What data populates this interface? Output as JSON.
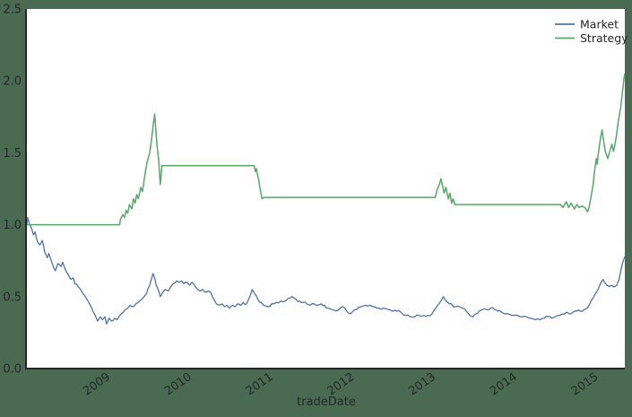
{
  "figure": {
    "background_color": "#4a6b52",
    "plot_background_color": "#ffffff",
    "spine_color": "#262626",
    "text_color": "#262626"
  },
  "chart_data": {
    "type": "line",
    "title": "",
    "xlabel": "tradeDate",
    "ylabel": "",
    "grid": false,
    "xlim": [
      2008.0,
      2015.35
    ],
    "ylim": [
      0.0,
      2.5
    ],
    "ytick_values": [
      0.0,
      0.5,
      1.0,
      1.5,
      2.0,
      2.5
    ],
    "ytick_labels": [
      "0.0",
      "0.5",
      "1.0",
      "1.5",
      "2.0",
      "2.5"
    ],
    "xtick_values": [
      2009,
      2010,
      2011,
      2012,
      2013,
      2014,
      2015
    ],
    "xtick_labels": [
      "2009",
      "2010",
      "2011",
      "2012",
      "2013",
      "2014",
      "2015"
    ],
    "legend": {
      "position": "upper-right",
      "entries": [
        {
          "label": "Market",
          "color": "#4c72b0"
        },
        {
          "label": "Strategy",
          "color": "#55a868"
        }
      ]
    },
    "series": [
      {
        "name": "Market",
        "color": "#4c72b0",
        "noise": 0.009,
        "points": [
          [
            2008.0,
            1.0
          ],
          [
            2008.01,
            1.05
          ],
          [
            2008.03,
            1.01
          ],
          [
            2008.06,
            0.97
          ],
          [
            2008.08,
            0.93
          ],
          [
            2008.1,
            0.95
          ],
          [
            2008.13,
            0.88
          ],
          [
            2008.16,
            0.86
          ],
          [
            2008.19,
            0.89
          ],
          [
            2008.22,
            0.81
          ],
          [
            2008.25,
            0.77
          ],
          [
            2008.27,
            0.8
          ],
          [
            2008.3,
            0.75
          ],
          [
            2008.33,
            0.7
          ],
          [
            2008.35,
            0.68
          ],
          [
            2008.38,
            0.73
          ],
          [
            2008.42,
            0.71
          ],
          [
            2008.44,
            0.74
          ],
          [
            2008.47,
            0.69
          ],
          [
            2008.51,
            0.65
          ],
          [
            2008.54,
            0.62
          ],
          [
            2008.57,
            0.63
          ],
          [
            2008.59,
            0.59
          ],
          [
            2008.63,
            0.57
          ],
          [
            2008.66,
            0.55
          ],
          [
            2008.69,
            0.52
          ],
          [
            2008.73,
            0.49
          ],
          [
            2008.76,
            0.46
          ],
          [
            2008.79,
            0.43
          ],
          [
            2008.81,
            0.4
          ],
          [
            2008.84,
            0.37
          ],
          [
            2008.87,
            0.33
          ],
          [
            2008.9,
            0.36
          ],
          [
            2008.93,
            0.34
          ],
          [
            2008.96,
            0.36
          ],
          [
            2008.98,
            0.31
          ],
          [
            2009.01,
            0.35
          ],
          [
            2009.04,
            0.33
          ],
          [
            2009.08,
            0.35
          ],
          [
            2009.11,
            0.34
          ],
          [
            2009.14,
            0.37
          ],
          [
            2009.18,
            0.39
          ],
          [
            2009.21,
            0.41
          ],
          [
            2009.24,
            0.42
          ],
          [
            2009.27,
            0.44
          ],
          [
            2009.31,
            0.43
          ],
          [
            2009.34,
            0.45
          ],
          [
            2009.37,
            0.46
          ],
          [
            2009.41,
            0.48
          ],
          [
            2009.44,
            0.5
          ],
          [
            2009.47,
            0.52
          ],
          [
            2009.51,
            0.58
          ],
          [
            2009.53,
            0.62
          ],
          [
            2009.55,
            0.66
          ],
          [
            2009.57,
            0.63
          ],
          [
            2009.59,
            0.58
          ],
          [
            2009.62,
            0.54
          ],
          [
            2009.64,
            0.5
          ],
          [
            2009.67,
            0.53
          ],
          [
            2009.7,
            0.55
          ],
          [
            2009.74,
            0.54
          ],
          [
            2009.77,
            0.57
          ],
          [
            2009.8,
            0.59
          ],
          [
            2009.84,
            0.61
          ],
          [
            2009.87,
            0.6
          ],
          [
            2009.9,
            0.61
          ],
          [
            2009.93,
            0.59
          ],
          [
            2009.97,
            0.6
          ],
          [
            2010.0,
            0.58
          ],
          [
            2010.03,
            0.6
          ],
          [
            2010.07,
            0.57
          ],
          [
            2010.1,
            0.55
          ],
          [
            2010.13,
            0.54
          ],
          [
            2010.16,
            0.55
          ],
          [
            2010.2,
            0.53
          ],
          [
            2010.23,
            0.54
          ],
          [
            2010.26,
            0.53
          ],
          [
            2010.3,
            0.48
          ],
          [
            2010.33,
            0.45
          ],
          [
            2010.36,
            0.44
          ],
          [
            2010.4,
            0.45
          ],
          [
            2010.43,
            0.43
          ],
          [
            2010.46,
            0.44
          ],
          [
            2010.49,
            0.42
          ],
          [
            2010.53,
            0.44
          ],
          [
            2010.56,
            0.43
          ],
          [
            2010.59,
            0.45
          ],
          [
            2010.63,
            0.44
          ],
          [
            2010.66,
            0.46
          ],
          [
            2010.7,
            0.45
          ],
          [
            2010.74,
            0.5
          ],
          [
            2010.77,
            0.55
          ],
          [
            2010.8,
            0.52
          ],
          [
            2010.84,
            0.48
          ],
          [
            2010.88,
            0.46
          ],
          [
            2010.91,
            0.44
          ],
          [
            2010.96,
            0.43
          ],
          [
            2011.01,
            0.45
          ],
          [
            2011.07,
            0.46
          ],
          [
            2011.12,
            0.47
          ],
          [
            2011.18,
            0.47
          ],
          [
            2011.23,
            0.49
          ],
          [
            2011.26,
            0.5
          ],
          [
            2011.31,
            0.48
          ],
          [
            2011.35,
            0.47
          ],
          [
            2011.4,
            0.46
          ],
          [
            2011.44,
            0.45
          ],
          [
            2011.48,
            0.44
          ],
          [
            2011.53,
            0.45
          ],
          [
            2011.57,
            0.44
          ],
          [
            2011.62,
            0.45
          ],
          [
            2011.66,
            0.44
          ],
          [
            2011.7,
            0.42
          ],
          [
            2011.75,
            0.41
          ],
          [
            2011.8,
            0.4
          ],
          [
            2011.85,
            0.42
          ],
          [
            2011.89,
            0.43
          ],
          [
            2011.92,
            0.41
          ],
          [
            2011.97,
            0.38
          ],
          [
            2012.01,
            0.4
          ],
          [
            2012.05,
            0.41
          ],
          [
            2012.11,
            0.43
          ],
          [
            2012.16,
            0.44
          ],
          [
            2012.22,
            0.44
          ],
          [
            2012.27,
            0.43
          ],
          [
            2012.33,
            0.42
          ],
          [
            2012.38,
            0.42
          ],
          [
            2012.44,
            0.41
          ],
          [
            2012.49,
            0.4
          ],
          [
            2012.55,
            0.4
          ],
          [
            2012.6,
            0.39
          ],
          [
            2012.66,
            0.37
          ],
          [
            2012.71,
            0.36
          ],
          [
            2012.77,
            0.36
          ],
          [
            2012.82,
            0.37
          ],
          [
            2012.88,
            0.37
          ],
          [
            2012.93,
            0.37
          ],
          [
            2012.98,
            0.38
          ],
          [
            2013.01,
            0.41
          ],
          [
            2013.05,
            0.44
          ],
          [
            2013.09,
            0.47
          ],
          [
            2013.12,
            0.5
          ],
          [
            2013.15,
            0.47
          ],
          [
            2013.19,
            0.45
          ],
          [
            2013.23,
            0.44
          ],
          [
            2013.27,
            0.43
          ],
          [
            2013.32,
            0.43
          ],
          [
            2013.35,
            0.42
          ],
          [
            2013.4,
            0.4
          ],
          [
            2013.43,
            0.38
          ],
          [
            2013.48,
            0.36
          ],
          [
            2013.52,
            0.38
          ],
          [
            2013.56,
            0.4
          ],
          [
            2013.6,
            0.41
          ],
          [
            2013.65,
            0.41
          ],
          [
            2013.7,
            0.42
          ],
          [
            2013.75,
            0.41
          ],
          [
            2013.79,
            0.4
          ],
          [
            2013.84,
            0.39
          ],
          [
            2013.88,
            0.38
          ],
          [
            2013.92,
            0.38
          ],
          [
            2013.98,
            0.37
          ],
          [
            2014.03,
            0.37
          ],
          [
            2014.09,
            0.36
          ],
          [
            2014.14,
            0.36
          ],
          [
            2014.2,
            0.35
          ],
          [
            2014.25,
            0.34
          ],
          [
            2014.31,
            0.34
          ],
          [
            2014.36,
            0.35
          ],
          [
            2014.41,
            0.36
          ],
          [
            2014.45,
            0.35
          ],
          [
            2014.49,
            0.36
          ],
          [
            2014.54,
            0.37
          ],
          [
            2014.58,
            0.38
          ],
          [
            2014.63,
            0.39
          ],
          [
            2014.67,
            0.38
          ],
          [
            2014.71,
            0.39
          ],
          [
            2014.76,
            0.4
          ],
          [
            2014.8,
            0.4
          ],
          [
            2014.85,
            0.41
          ],
          [
            2014.89,
            0.42
          ],
          [
            2014.92,
            0.45
          ],
          [
            2014.96,
            0.49
          ],
          [
            2014.99,
            0.52
          ],
          [
            2015.02,
            0.55
          ],
          [
            2015.05,
            0.59
          ],
          [
            2015.08,
            0.62
          ],
          [
            2015.1,
            0.6
          ],
          [
            2015.13,
            0.58
          ],
          [
            2015.16,
            0.57
          ],
          [
            2015.19,
            0.58
          ],
          [
            2015.23,
            0.57
          ],
          [
            2015.25,
            0.58
          ],
          [
            2015.28,
            0.62
          ],
          [
            2015.3,
            0.68
          ],
          [
            2015.32,
            0.73
          ],
          [
            2015.35,
            0.78
          ]
        ]
      },
      {
        "name": "Strategy",
        "color": "#55a868",
        "noise": 0,
        "points": [
          [
            2008.0,
            1.0
          ],
          [
            2009.14,
            1.0
          ],
          [
            2009.15,
            1.04
          ],
          [
            2009.18,
            1.07
          ],
          [
            2009.2,
            1.05
          ],
          [
            2009.22,
            1.1
          ],
          [
            2009.24,
            1.08
          ],
          [
            2009.26,
            1.14
          ],
          [
            2009.29,
            1.11
          ],
          [
            2009.31,
            1.18
          ],
          [
            2009.33,
            1.15
          ],
          [
            2009.35,
            1.21
          ],
          [
            2009.37,
            1.18
          ],
          [
            2009.4,
            1.26
          ],
          [
            2009.42,
            1.23
          ],
          [
            2009.44,
            1.31
          ],
          [
            2009.46,
            1.38
          ],
          [
            2009.48,
            1.44
          ],
          [
            2009.51,
            1.5
          ],
          [
            2009.53,
            1.58
          ],
          [
            2009.55,
            1.68
          ],
          [
            2009.57,
            1.77
          ],
          [
            2009.58,
            1.7
          ],
          [
            2009.59,
            1.62
          ],
          [
            2009.6,
            1.55
          ],
          [
            2009.62,
            1.45
          ],
          [
            2009.63,
            1.36
          ],
          [
            2009.64,
            1.28
          ],
          [
            2009.66,
            1.41
          ],
          [
            2010.79,
            1.41
          ],
          [
            2010.81,
            1.37
          ],
          [
            2010.82,
            1.39
          ],
          [
            2010.85,
            1.31
          ],
          [
            2010.87,
            1.24
          ],
          [
            2010.89,
            1.18
          ],
          [
            2010.91,
            1.19
          ],
          [
            2013.02,
            1.19
          ],
          [
            2013.04,
            1.24
          ],
          [
            2013.07,
            1.28
          ],
          [
            2013.09,
            1.32
          ],
          [
            2013.11,
            1.27
          ],
          [
            2013.13,
            1.22
          ],
          [
            2013.15,
            1.26
          ],
          [
            2013.18,
            1.18
          ],
          [
            2013.2,
            1.22
          ],
          [
            2013.22,
            1.15
          ],
          [
            2013.24,
            1.18
          ],
          [
            2013.26,
            1.14
          ],
          [
            2014.56,
            1.14
          ],
          [
            2014.59,
            1.12
          ],
          [
            2014.63,
            1.16
          ],
          [
            2014.66,
            1.12
          ],
          [
            2014.69,
            1.15
          ],
          [
            2014.73,
            1.11
          ],
          [
            2014.76,
            1.14
          ],
          [
            2014.79,
            1.12
          ],
          [
            2014.82,
            1.13
          ],
          [
            2014.86,
            1.12
          ],
          [
            2014.89,
            1.09
          ],
          [
            2014.91,
            1.12
          ],
          [
            2014.93,
            1.18
          ],
          [
            2014.96,
            1.28
          ],
          [
            2014.98,
            1.38
          ],
          [
            2015.0,
            1.46
          ],
          [
            2015.01,
            1.42
          ],
          [
            2015.03,
            1.52
          ],
          [
            2015.05,
            1.6
          ],
          [
            2015.07,
            1.66
          ],
          [
            2015.09,
            1.58
          ],
          [
            2015.11,
            1.51
          ],
          [
            2015.14,
            1.46
          ],
          [
            2015.17,
            1.52
          ],
          [
            2015.19,
            1.56
          ],
          [
            2015.21,
            1.51
          ],
          [
            2015.23,
            1.56
          ],
          [
            2015.25,
            1.63
          ],
          [
            2015.27,
            1.72
          ],
          [
            2015.3,
            1.82
          ],
          [
            2015.32,
            1.92
          ],
          [
            2015.34,
            2.02
          ],
          [
            2015.35,
            2.05
          ]
        ]
      }
    ]
  }
}
